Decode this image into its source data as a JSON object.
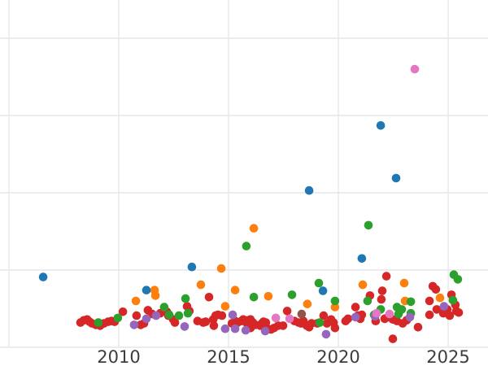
{
  "chart_data": {
    "type": "scatter",
    "title": "",
    "xlabel": "",
    "ylabel": "",
    "note": "figure cropped: no y-axis tick labels visible; y values expressed in gridline units (0 = bottom gridline, 1 per horizontal gridline)",
    "x_ticks": [
      {
        "label": "2010",
        "year": 2010
      },
      {
        "label": "2015",
        "year": 2015
      },
      {
        "label": "2020",
        "year": 2020
      },
      {
        "label": "2025",
        "year": 2025
      }
    ],
    "grid": {
      "visible": true,
      "color": "#e6e6e6",
      "vertical_years": [
        2005,
        2010,
        2015,
        2020,
        2025
      ],
      "horizontal_values": [
        0,
        1,
        2,
        3,
        4
      ]
    },
    "xlim": [
      2004.6,
      2026.8
    ],
    "ylim": [
      -0.25,
      4.5
    ],
    "tick_label_color": "#3d3d3d",
    "background_color": "#ffffff",
    "marker": {
      "shape": "circle",
      "radius_px": 5.3
    },
    "series": [
      {
        "name": "red",
        "color": "#d62728",
        "points": [
          [
            2008.26,
            0.32
          ],
          [
            2008.41,
            0.35
          ],
          [
            2008.56,
            0.36
          ],
          [
            2008.67,
            0.33
          ],
          [
            2008.78,
            0.31
          ],
          [
            2008.96,
            0.29
          ],
          [
            2009.15,
            0.28
          ],
          [
            2009.33,
            0.31
          ],
          [
            2009.52,
            0.33
          ],
          [
            2009.67,
            0.34
          ],
          [
            2009.81,
            0.33
          ],
          [
            2010.19,
            0.46
          ],
          [
            2010.81,
            0.41
          ],
          [
            2011.0,
            0.29
          ],
          [
            2011.15,
            0.31
          ],
          [
            2011.33,
            0.48
          ],
          [
            2011.52,
            0.43
          ],
          [
            2011.89,
            0.44
          ],
          [
            2012.19,
            0.46
          ],
          [
            2012.26,
            0.41
          ],
          [
            2012.48,
            0.36
          ],
          [
            2012.56,
            0.32
          ],
          [
            2013.11,
            0.53
          ],
          [
            2013.22,
            0.47
          ],
          [
            2013.59,
            0.34
          ],
          [
            2013.85,
            0.32
          ],
          [
            2013.96,
            0.33
          ],
          [
            2014.11,
            0.65
          ],
          [
            2014.3,
            0.36
          ],
          [
            2014.33,
            0.28
          ],
          [
            2014.41,
            0.41
          ],
          [
            2014.52,
            0.42
          ],
          [
            2014.7,
            0.41
          ],
          [
            2015.15,
            0.31
          ],
          [
            2015.3,
            0.34
          ],
          [
            2015.41,
            0.32
          ],
          [
            2015.59,
            0.34
          ],
          [
            2015.67,
            0.36
          ],
          [
            2015.81,
            0.32
          ],
          [
            2015.89,
            0.35
          ],
          [
            2016.0,
            0.36
          ],
          [
            2016.0,
            0.25
          ],
          [
            2016.11,
            0.32
          ],
          [
            2016.22,
            0.29
          ],
          [
            2016.44,
            0.28
          ],
          [
            2016.52,
            0.31
          ],
          [
            2016.59,
            0.33
          ],
          [
            2016.7,
            0.32
          ],
          [
            2016.74,
            0.25
          ],
          [
            2016.93,
            0.23
          ],
          [
            2017.07,
            0.25
          ],
          [
            2017.26,
            0.28
          ],
          [
            2017.48,
            0.28
          ],
          [
            2017.67,
            0.47
          ],
          [
            2018.0,
            0.34
          ],
          [
            2018.19,
            0.32
          ],
          [
            2018.3,
            0.31
          ],
          [
            2018.41,
            0.34
          ],
          [
            2018.56,
            0.28
          ],
          [
            2018.67,
            0.26
          ],
          [
            2018.78,
            0.31
          ],
          [
            2019.04,
            0.31
          ],
          [
            2019.33,
            0.41
          ],
          [
            2019.48,
            0.31
          ],
          [
            2019.67,
            0.36
          ],
          [
            2019.78,
            0.32
          ],
          [
            2019.85,
            0.25
          ],
          [
            2020.33,
            0.34
          ],
          [
            2020.44,
            0.37
          ],
          [
            2020.78,
            0.52
          ],
          [
            2020.89,
            0.41
          ],
          [
            2021.0,
            0.37
          ],
          [
            2021.07,
            0.42
          ],
          [
            2021.44,
            0.67
          ],
          [
            2021.7,
            0.34
          ],
          [
            2021.96,
            0.62
          ],
          [
            2022.0,
            0.73
          ],
          [
            2022.11,
            0.37
          ],
          [
            2022.19,
            0.92
          ],
          [
            2022.26,
            0.39
          ],
          [
            2022.48,
            0.36
          ],
          [
            2022.48,
            0.11
          ],
          [
            2022.67,
            0.34
          ],
          [
            2022.93,
            0.31
          ],
          [
            2023.11,
            0.35
          ],
          [
            2023.63,
            0.26
          ],
          [
            2024.15,
            0.6
          ],
          [
            2024.15,
            0.42
          ],
          [
            2024.3,
            0.79
          ],
          [
            2024.44,
            0.75
          ],
          [
            2024.48,
            0.49
          ],
          [
            2024.78,
            0.44
          ],
          [
            2024.96,
            0.49
          ],
          [
            2025.07,
            0.41
          ],
          [
            2025.15,
            0.68
          ],
          [
            2025.33,
            0.55
          ],
          [
            2025.37,
            0.47
          ],
          [
            2025.48,
            0.45
          ]
        ]
      },
      {
        "name": "orange",
        "color": "#ff7f0e",
        "points": [
          [
            2010.78,
            0.6
          ],
          [
            2011.63,
            0.74
          ],
          [
            2011.67,
            0.67
          ],
          [
            2013.74,
            0.81
          ],
          [
            2014.67,
            1.02
          ],
          [
            2014.85,
            0.53
          ],
          [
            2015.3,
            0.74
          ],
          [
            2016.15,
            1.54
          ],
          [
            2016.81,
            0.66
          ],
          [
            2018.59,
            0.56
          ],
          [
            2019.85,
            0.52
          ],
          [
            2021.11,
            0.81
          ],
          [
            2023.0,
            0.83
          ],
          [
            2023.04,
            0.6
          ],
          [
            2024.63,
            0.64
          ]
        ]
      },
      {
        "name": "green",
        "color": "#2ca02c",
        "points": [
          [
            2009.07,
            0.32
          ],
          [
            2009.96,
            0.38
          ],
          [
            2012.07,
            0.52
          ],
          [
            2012.3,
            0.42
          ],
          [
            2012.74,
            0.41
          ],
          [
            2013.04,
            0.63
          ],
          [
            2013.15,
            0.44
          ],
          [
            2015.81,
            1.31
          ],
          [
            2016.15,
            0.65
          ],
          [
            2017.89,
            0.68
          ],
          [
            2019.11,
            0.83
          ],
          [
            2019.15,
            0.32
          ],
          [
            2019.85,
            0.6
          ],
          [
            2021.33,
            0.6
          ],
          [
            2021.37,
            1.58
          ],
          [
            2021.63,
            0.42
          ],
          [
            2021.93,
            0.49
          ],
          [
            2022.67,
            0.52
          ],
          [
            2022.74,
            0.43
          ],
          [
            2022.89,
            0.49
          ],
          [
            2023.3,
            0.59
          ],
          [
            2023.3,
            0.44
          ],
          [
            2025.22,
            0.61
          ],
          [
            2025.26,
            0.94
          ],
          [
            2025.44,
            0.88
          ]
        ]
      },
      {
        "name": "purple",
        "color": "#9467bd",
        "points": [
          [
            2010.7,
            0.29
          ],
          [
            2011.26,
            0.37
          ],
          [
            2011.7,
            0.41
          ],
          [
            2013.0,
            0.27
          ],
          [
            2014.85,
            0.24
          ],
          [
            2015.19,
            0.42
          ],
          [
            2015.3,
            0.24
          ],
          [
            2015.78,
            0.22
          ],
          [
            2016.67,
            0.21
          ],
          [
            2019.44,
            0.17
          ],
          [
            2020.78,
            0.39
          ],
          [
            2021.67,
            0.4
          ],
          [
            2023.26,
            0.39
          ],
          [
            2024.81,
            0.53
          ]
        ]
      },
      {
        "name": "brown",
        "color": "#8c564b",
        "points": [
          [
            2018.33,
            0.43
          ]
        ]
      },
      {
        "name": "pink",
        "color": "#e377c2",
        "points": [
          [
            2017.15,
            0.38
          ],
          [
            2017.78,
            0.37
          ],
          [
            2021.74,
            0.44
          ],
          [
            2022.33,
            0.43
          ],
          [
            2023.48,
            3.6
          ]
        ]
      },
      {
        "name": "blue",
        "color": "#1f77b4",
        "points": [
          [
            2006.56,
            0.91
          ],
          [
            2011.26,
            0.74
          ],
          [
            2013.33,
            1.04
          ],
          [
            2018.67,
            2.03
          ],
          [
            2019.3,
            0.73
          ],
          [
            2021.07,
            1.15
          ],
          [
            2021.93,
            2.87
          ],
          [
            2022.63,
            2.19
          ]
        ]
      }
    ]
  }
}
